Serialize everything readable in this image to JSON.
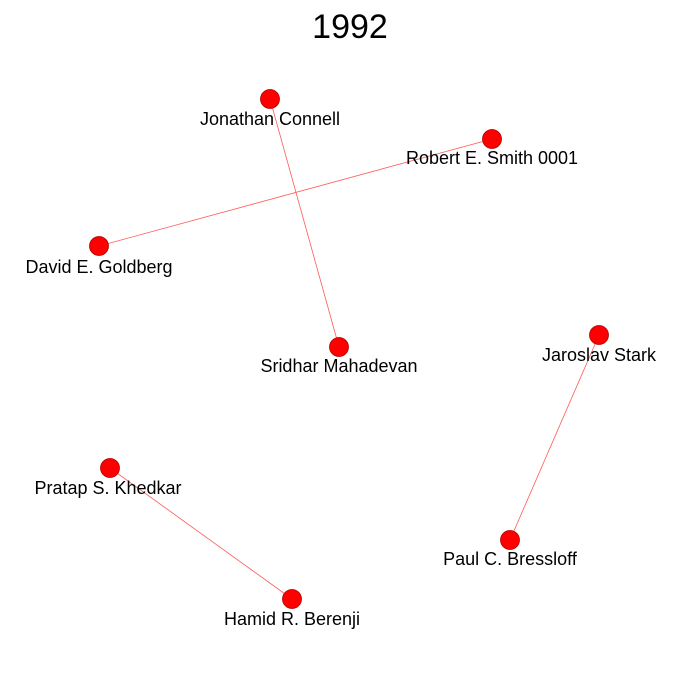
{
  "title": "1992",
  "colors": {
    "node_fill": "#ff0000",
    "node_stroke": "#b00000",
    "edge": "#ff5a5a",
    "label": "#000000",
    "background": "#ffffff"
  },
  "nodes": [
    {
      "id": "jonathan-connell",
      "label": "Jonathan Connell"
    },
    {
      "id": "robert-e-smith",
      "label": "Robert E. Smith 0001"
    },
    {
      "id": "david-e-goldberg",
      "label": "David E. Goldberg"
    },
    {
      "id": "sridhar-mahadevan",
      "label": "Sridhar Mahadevan"
    },
    {
      "id": "jaroslav-stark",
      "label": "Jaroslav Stark"
    },
    {
      "id": "pratap-s-khedkar",
      "label": "Pratap S. Khedkar"
    },
    {
      "id": "paul-c-bressloff",
      "label": "Paul C. Bressloff"
    },
    {
      "id": "hamid-r-berenji",
      "label": "Hamid R. Berenji"
    }
  ],
  "edges": [
    {
      "source": "jonathan-connell",
      "target": "sridhar-mahadevan"
    },
    {
      "source": "robert-e-smith",
      "target": "david-e-goldberg"
    },
    {
      "source": "jaroslav-stark",
      "target": "paul-c-bressloff"
    },
    {
      "source": "pratap-s-khedkar",
      "target": "hamid-r-berenji"
    }
  ]
}
